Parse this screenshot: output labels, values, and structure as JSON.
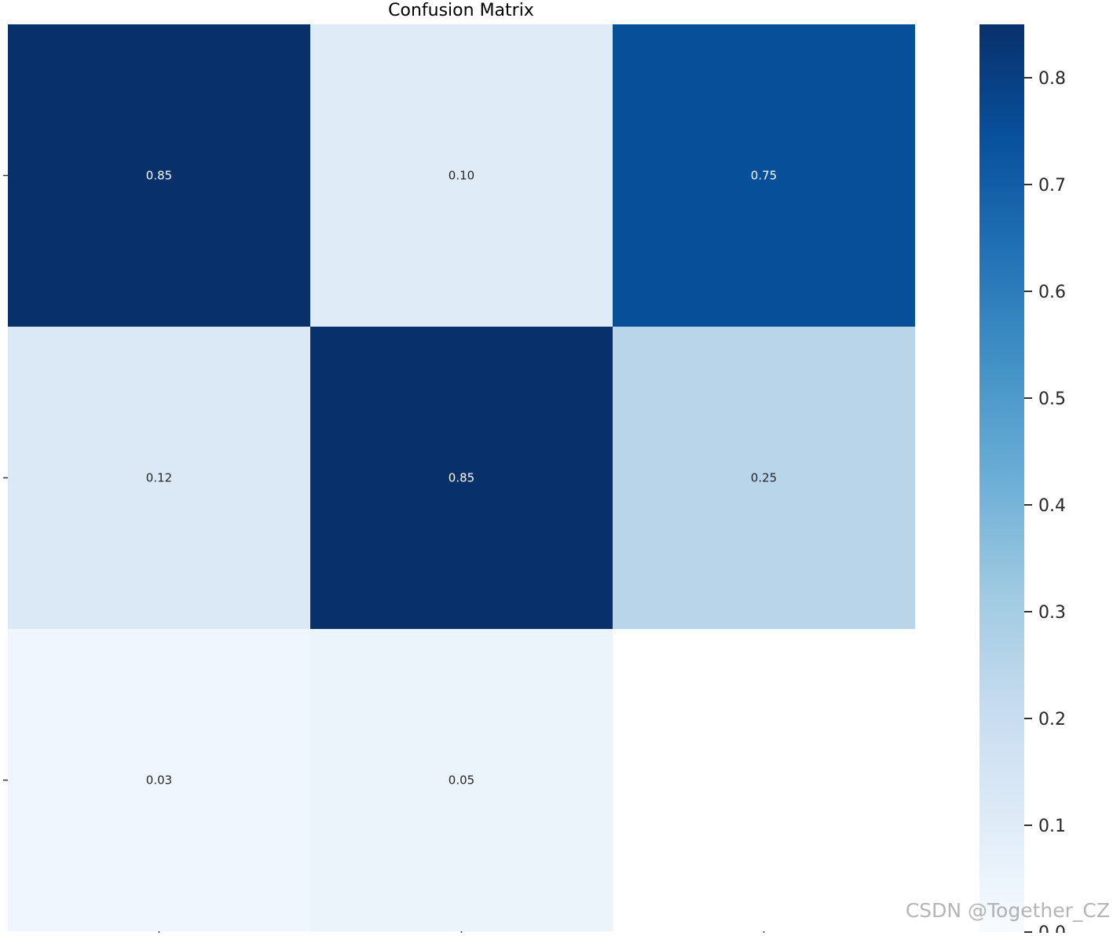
{
  "chart_data": {
    "type": "heatmap",
    "title": "Confusion Matrix",
    "rows": 3,
    "cols": 3,
    "matrix": [
      [
        0.85,
        0.1,
        0.75
      ],
      [
        0.12,
        0.85,
        0.25
      ],
      [
        0.03,
        0.05,
        null
      ]
    ],
    "cell_labels": [
      [
        "0.85",
        "0.10",
        "0.75"
      ],
      [
        "0.12",
        "0.85",
        "0.25"
      ],
      [
        "0.03",
        "0.05",
        ""
      ]
    ],
    "colormap": "Blues",
    "colorbar": {
      "range": [
        0.0,
        0.85
      ],
      "ticks": [
        0.0,
        0.1,
        0.2,
        0.3,
        0.4,
        0.5,
        0.6,
        0.7,
        0.8
      ],
      "tick_labels": [
        "0.0",
        "0.1",
        "0.2",
        "0.3",
        "0.4",
        "0.5",
        "0.6",
        "0.7",
        "0.8"
      ]
    },
    "grid": false
  },
  "watermark": "CSDN @Together_CZ"
}
